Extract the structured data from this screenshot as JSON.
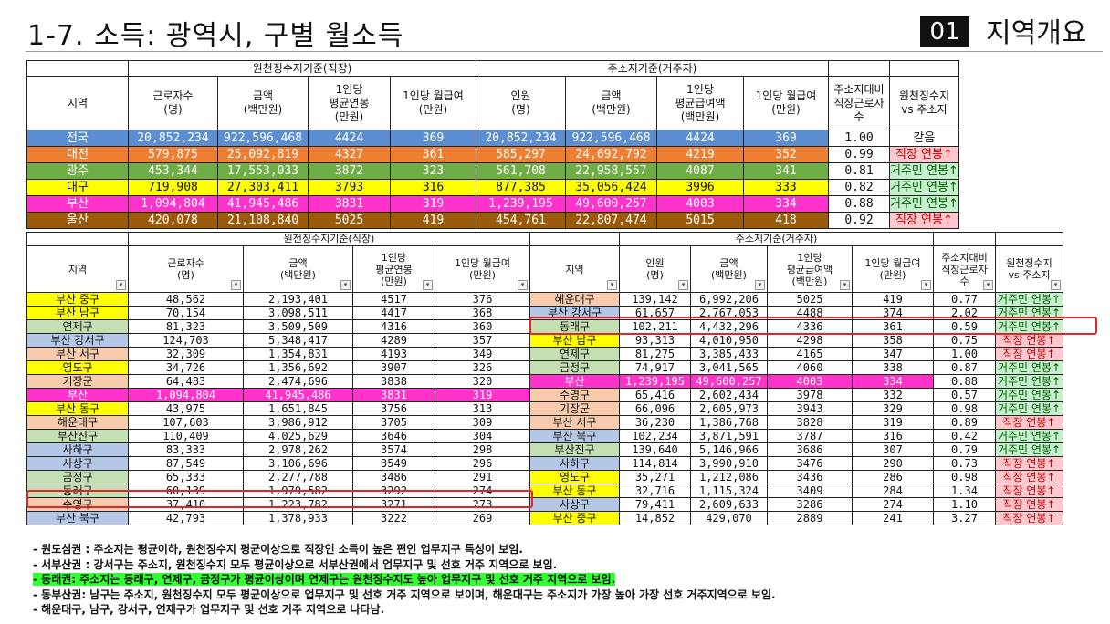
{
  "header": {
    "title": "1-7. 소득: 광역시, 구별 월소득",
    "section_number": "01",
    "section_title": "지역개요"
  },
  "top_table": {
    "group1": "원천징수지기준(직장)",
    "group2": "주소지기준(거주자)",
    "columns": [
      "지역",
      "근로자수\n(명)",
      "금액\n(백만원)",
      "1인당\n평균연봉\n(만원)",
      "1인당 월급여\n(만원)",
      "인원\n(명)",
      "금액\n(백만원)",
      "1인당\n평균급여액\n(백만원)",
      "1인당 월급여\n(만원)",
      "주소지대비\n직장근로자\n수",
      "원천징수지\nvs 주소지"
    ],
    "rows": [
      {
        "region": "전국",
        "c1": "20,852,234",
        "c2": "922,596,468",
        "c3": "4424",
        "c4": "369",
        "c5": "20,852,234",
        "c6": "922,596,468",
        "c7": "4424",
        "c8": "369",
        "ratio": "1.00",
        "cmp": "같음",
        "bg": "#5b8fd1",
        "fg": "#ffffff",
        "cmpBg": "#ffffff",
        "cmpFg": "#111111"
      },
      {
        "region": "대전",
        "c1": "579,875",
        "c2": "25,092,819",
        "c3": "4327",
        "c4": "361",
        "c5": "585,297",
        "c6": "24,692,792",
        "c7": "4219",
        "c8": "352",
        "ratio": "0.99",
        "cmp": "직장 연봉↑",
        "bg": "#ef7f33",
        "fg": "#ffffff",
        "cmpBg": "#ffc7ce",
        "cmpFg": "#c00000"
      },
      {
        "region": "광주",
        "c1": "453,344",
        "c2": "17,553,033",
        "c3": "3872",
        "c4": "323",
        "c5": "561,708",
        "c6": "22,958,557",
        "c7": "4087",
        "c8": "341",
        "ratio": "0.81",
        "cmp": "거주민 연봉↑",
        "bg": "#71ad47",
        "fg": "#ffffff",
        "cmpBg": "#c6efce",
        "cmpFg": "#006100"
      },
      {
        "region": "대구",
        "c1": "719,908",
        "c2": "27,303,411",
        "c3": "3793",
        "c4": "316",
        "c5": "877,385",
        "c6": "35,056,424",
        "c7": "3996",
        "c8": "333",
        "ratio": "0.82",
        "cmp": "거주민 연봉↑",
        "bg": "#ffff00",
        "fg": "#111111",
        "cmpBg": "#c6efce",
        "cmpFg": "#006100"
      },
      {
        "region": "부산",
        "c1": "1,094,804",
        "c2": "41,945,486",
        "c3": "3831",
        "c4": "319",
        "c5": "1,239,195",
        "c6": "49,600,257",
        "c7": "4003",
        "c8": "334",
        "ratio": "0.88",
        "cmp": "거주민 연봉↑",
        "bg": "#ff33cc",
        "fg": "#ffffff",
        "cmpBg": "#c6efce",
        "cmpFg": "#006100"
      },
      {
        "region": "울산",
        "c1": "420,078",
        "c2": "21,108,840",
        "c3": "5025",
        "c4": "419",
        "c5": "454,761",
        "c6": "22,807,474",
        "c7": "5015",
        "c8": "418",
        "ratio": "0.92",
        "cmp": "직장 연봉↑",
        "bg": "#9c5b0c",
        "fg": "#ffffff",
        "cmpBg": "#ffc7ce",
        "cmpFg": "#c00000"
      }
    ]
  },
  "left_table": {
    "group": "원천징수지기준(직장)",
    "columns": [
      "지역",
      "근로자수\n(명)",
      "금액\n(백만원)",
      "1인당\n평균연봉\n(만원)",
      "1인당 월급여\n(만원)"
    ],
    "rows": [
      {
        "region": "부산 중구",
        "c1": "48,562",
        "c2": "2,193,401",
        "c3": "4517",
        "c4": "376",
        "bg": "#ffff00",
        "fg": "#111111"
      },
      {
        "region": "부산 남구",
        "c1": "70,154",
        "c2": "3,098,511",
        "c3": "4417",
        "c4": "368",
        "bg": "#ffff00",
        "fg": "#111111"
      },
      {
        "region": "연제구",
        "c1": "81,323",
        "c2": "3,509,509",
        "c3": "4316",
        "c4": "360",
        "bg": "#c4dfb3",
        "fg": "#111111"
      },
      {
        "region": "부산 강서구",
        "c1": "124,703",
        "c2": "5,348,417",
        "c3": "4289",
        "c4": "357",
        "bg": "#b4c7e7",
        "fg": "#111111"
      },
      {
        "region": "부산 서구",
        "c1": "32,309",
        "c2": "1,354,831",
        "c3": "4193",
        "c4": "349",
        "bg": "#f8cbad",
        "fg": "#111111"
      },
      {
        "region": "영도구",
        "c1": "34,726",
        "c2": "1,356,692",
        "c3": "3907",
        "c4": "326",
        "bg": "#ffff00",
        "fg": "#111111"
      },
      {
        "region": "기장군",
        "c1": "64,483",
        "c2": "2,474,696",
        "c3": "3838",
        "c4": "320",
        "bg": "#f8cbad",
        "fg": "#111111"
      },
      {
        "region": "부산",
        "c1": "1,094,804",
        "c2": "41,945,486",
        "c3": "3831",
        "c4": "319",
        "bg": "#ff33cc",
        "fg": "#ffffff",
        "rowBg": "#ff33cc",
        "rowFg": "#ffffff"
      },
      {
        "region": "부산 동구",
        "c1": "43,975",
        "c2": "1,651,845",
        "c3": "3756",
        "c4": "313",
        "bg": "#ffff00",
        "fg": "#111111"
      },
      {
        "region": "해운대구",
        "c1": "107,603",
        "c2": "3,986,912",
        "c3": "3705",
        "c4": "309",
        "bg": "#f8cbad",
        "fg": "#111111"
      },
      {
        "region": "부산진구",
        "c1": "110,409",
        "c2": "4,025,629",
        "c3": "3646",
        "c4": "304",
        "bg": "#c4dfb3",
        "fg": "#111111"
      },
      {
        "region": "사하구",
        "c1": "83,333",
        "c2": "2,978,262",
        "c3": "3574",
        "c4": "298",
        "bg": "#b4c7e7",
        "fg": "#111111"
      },
      {
        "region": "사상구",
        "c1": "87,549",
        "c2": "3,106,696",
        "c3": "3549",
        "c4": "296",
        "bg": "#b4c7e7",
        "fg": "#111111"
      },
      {
        "region": "금정구",
        "c1": "65,333",
        "c2": "2,277,788",
        "c3": "3486",
        "c4": "291",
        "bg": "#c4dfb3",
        "fg": "#111111"
      },
      {
        "region": "동래구",
        "c1": "60,139",
        "c2": "1,979,582",
        "c3": "3292",
        "c4": "274",
        "bg": "#c4dfb3",
        "fg": "#111111"
      },
      {
        "region": "수영구",
        "c1": "37,410",
        "c2": "1,223,782",
        "c3": "3271",
        "c4": "273",
        "bg": "#f8cbad",
        "fg": "#111111"
      },
      {
        "region": "부산 북구",
        "c1": "42,793",
        "c2": "1,378,933",
        "c3": "3222",
        "c4": "269",
        "bg": "#b4c7e7",
        "fg": "#111111"
      }
    ]
  },
  "right_table": {
    "group": "주소지기준(거주자)",
    "columns": [
      "지역",
      "인원\n(명)",
      "금액\n(백만원)",
      "1인당\n평균급여액\n(백만원)",
      "1인당 월급여\n(만원)",
      "주소지대비\n직장근로자\n수",
      "원천징수지\nvs 주소지"
    ],
    "rows": [
      {
        "region": "해운대구",
        "c1": "139,142",
        "c2": "6,992,206",
        "c3": "5025",
        "c4": "419",
        "ratio": "0.77",
        "cmp": "거주민 연봉↑",
        "bg": "#f8cbad",
        "fg": "#111111",
        "cmpBg": "#c6efce",
        "cmpFg": "#006100"
      },
      {
        "region": "부산 강서구",
        "c1": "61,657",
        "c2": "2,767,053",
        "c3": "4488",
        "c4": "374",
        "ratio": "2.02",
        "cmp": "거주민 연봉↑",
        "bg": "#b4c7e7",
        "fg": "#111111",
        "cmpBg": "#c6efce",
        "cmpFg": "#006100"
      },
      {
        "region": "동래구",
        "c1": "102,211",
        "c2": "4,432,296",
        "c3": "4336",
        "c4": "361",
        "ratio": "0.59",
        "cmp": "거주민 연봉↑",
        "bg": "#c4dfb3",
        "fg": "#111111",
        "cmpBg": "#c6efce",
        "cmpFg": "#006100"
      },
      {
        "region": "부산 남구",
        "c1": "93,313",
        "c2": "4,010,950",
        "c3": "4298",
        "c4": "358",
        "ratio": "0.75",
        "cmp": "직장 연봉↑",
        "bg": "#ffff00",
        "fg": "#111111",
        "cmpBg": "#ffc7ce",
        "cmpFg": "#c00000"
      },
      {
        "region": "연제구",
        "c1": "81,275",
        "c2": "3,385,433",
        "c3": "4165",
        "c4": "347",
        "ratio": "1.00",
        "cmp": "직장 연봉↑",
        "bg": "#c4dfb3",
        "fg": "#111111",
        "cmpBg": "#ffc7ce",
        "cmpFg": "#c00000"
      },
      {
        "region": "금정구",
        "c1": "74,917",
        "c2": "3,041,565",
        "c3": "4060",
        "c4": "338",
        "ratio": "0.87",
        "cmp": "거주민 연봉↑",
        "bg": "#c4dfb3",
        "fg": "#111111",
        "cmpBg": "#c6efce",
        "cmpFg": "#006100"
      },
      {
        "region": "부산",
        "c1": "1,239,195",
        "c2": "49,600,257",
        "c3": "4003",
        "c4": "334",
        "ratio": "0.88",
        "cmp": "거주민 연봉↑",
        "bg": "#ff33cc",
        "fg": "#ffffff",
        "rowBg": "#ff33cc",
        "rowFg": "#ffffff",
        "cmpBg": "#c6efce",
        "cmpFg": "#006100"
      },
      {
        "region": "수영구",
        "c1": "65,416",
        "c2": "2,602,434",
        "c3": "3978",
        "c4": "332",
        "ratio": "0.57",
        "cmp": "거주민 연봉↑",
        "bg": "#f8cbad",
        "fg": "#111111",
        "cmpBg": "#c6efce",
        "cmpFg": "#006100"
      },
      {
        "region": "기장군",
        "c1": "66,096",
        "c2": "2,605,973",
        "c3": "3943",
        "c4": "329",
        "ratio": "0.98",
        "cmp": "거주민 연봉↑",
        "bg": "#f8cbad",
        "fg": "#111111",
        "cmpBg": "#c6efce",
        "cmpFg": "#006100"
      },
      {
        "region": "부산 서구",
        "c1": "36,230",
        "c2": "1,386,768",
        "c3": "3828",
        "c4": "319",
        "ratio": "0.89",
        "cmp": "직장 연봉↑",
        "bg": "#f8cbad",
        "fg": "#111111",
        "cmpBg": "#ffc7ce",
        "cmpFg": "#c00000"
      },
      {
        "region": "부산 북구",
        "c1": "102,234",
        "c2": "3,871,591",
        "c3": "3787",
        "c4": "316",
        "ratio": "0.42",
        "cmp": "거주민 연봉↑",
        "bg": "#b4c7e7",
        "fg": "#111111",
        "cmpBg": "#c6efce",
        "cmpFg": "#006100"
      },
      {
        "region": "부산진구",
        "c1": "139,640",
        "c2": "5,146,966",
        "c3": "3686",
        "c4": "307",
        "ratio": "0.79",
        "cmp": "거주민 연봉↑",
        "bg": "#c4dfb3",
        "fg": "#111111",
        "cmpBg": "#c6efce",
        "cmpFg": "#006100"
      },
      {
        "region": "사하구",
        "c1": "114,814",
        "c2": "3,990,910",
        "c3": "3476",
        "c4": "290",
        "ratio": "0.73",
        "cmp": "직장 연봉↑",
        "bg": "#b4c7e7",
        "fg": "#111111",
        "cmpBg": "#ffc7ce",
        "cmpFg": "#c00000"
      },
      {
        "region": "영도구",
        "c1": "35,271",
        "c2": "1,212,086",
        "c3": "3436",
        "c4": "286",
        "ratio": "0.98",
        "cmp": "직장 연봉↑",
        "bg": "#ffff00",
        "fg": "#111111",
        "cmpBg": "#ffc7ce",
        "cmpFg": "#c00000"
      },
      {
        "region": "부산 동구",
        "c1": "32,716",
        "c2": "1,115,324",
        "c3": "3409",
        "c4": "284",
        "ratio": "1.34",
        "cmp": "직장 연봉↑",
        "bg": "#ffff00",
        "fg": "#111111",
        "cmpBg": "#ffc7ce",
        "cmpFg": "#c00000"
      },
      {
        "region": "사상구",
        "c1": "79,411",
        "c2": "2,609,633",
        "c3": "3286",
        "c4": "274",
        "ratio": "1.10",
        "cmp": "직장 연봉↑",
        "bg": "#b4c7e7",
        "fg": "#111111",
        "cmpBg": "#ffc7ce",
        "cmpFg": "#c00000"
      },
      {
        "region": "부산 중구",
        "c1": "14,852",
        "c2": "429,070",
        "c3": "2889",
        "c4": "241",
        "ratio": "3.27",
        "cmp": "직장 연봉↑",
        "bg": "#ffff00",
        "fg": "#111111",
        "cmpBg": "#ffc7ce",
        "cmpFg": "#c00000"
      }
    ]
  },
  "notes": [
    {
      "text": "-  원도심권 : 주소지는 평균이하, 원천징수지 평균이상으로 직장인 소득이 높은 편인 업무지구 특성이 보임.",
      "highlight": false
    },
    {
      "text": "-  서부산권 : 강서구는 주소지, 원천징수지 모두 평균이상으로 서부산권에서 업무지구 및 선호 거주 지역으로 보임.",
      "highlight": false
    },
    {
      "text": "-  동래권: 주소지는 동래구, 연제구, 금정구가 평균이상이며 연제구는 원천징수지도 높아 업무지구 및 선호 거주 지역으로 보임.",
      "highlight": true
    },
    {
      "text": "-  동부산권: 남구는 주소지, 원천징수지 모두 평균이상으로 업무지구 및 선호 거주 지역으로 보이며, 해운대구는 주소지가 가장 높아 가장 선호 거주지역으로 보임.",
      "highlight": false
    },
    {
      "text": "-  해운대구, 남구, 강서구, 연제구가 업무지구 및 선호 거주 지역으로 나타남.",
      "highlight": false
    }
  ],
  "colors": {
    "highlight": "#33ff33",
    "redbox": "#e0262a"
  }
}
